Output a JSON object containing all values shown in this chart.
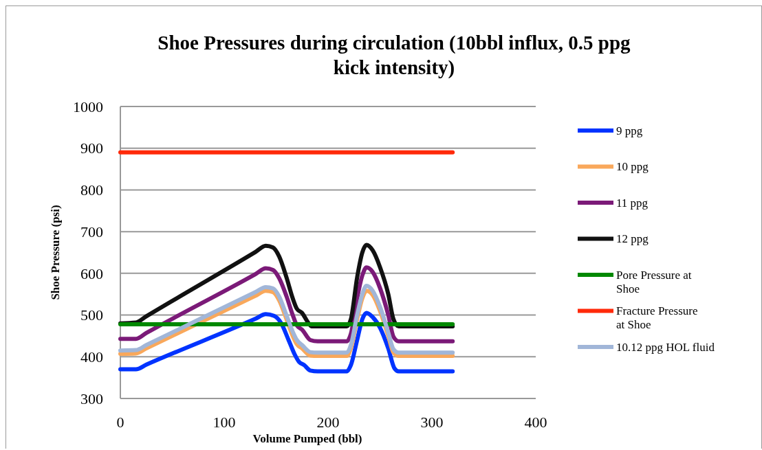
{
  "chart_data": {
    "type": "line",
    "title": "Shoe Pressures during circulation (10bbl influx, 0.5 ppg kick intensity)",
    "xlabel": "Volume Pumped (bbl)",
    "ylabel": "Shoe Pressure (psi)",
    "xlim": [
      0,
      400
    ],
    "xticks": [
      0,
      100,
      200,
      300,
      400
    ],
    "ylim": [
      300,
      1000
    ],
    "yticks": [
      300,
      400,
      500,
      600,
      700,
      800,
      900,
      1000
    ],
    "grid": "y",
    "legend": "right",
    "marker": "none",
    "line_style": "solid",
    "series": [
      {
        "name": "9 ppg",
        "color": "#0033ff",
        "x": [
          0,
          15,
          25,
          130,
          140,
          148,
          155,
          162,
          168,
          172,
          177,
          183,
          190,
          218,
          222,
          228,
          233,
          237,
          243,
          250,
          258,
          264,
          268,
          320
        ],
        "values": [
          370,
          370,
          381,
          491,
          502,
          498,
          480,
          440,
          405,
          388,
          380,
          367,
          365,
          365,
          380,
          440,
          490,
          505,
          495,
          470,
          420,
          372,
          365,
          365
        ]
      },
      {
        "name": "10 ppg",
        "color": "#f9a85b",
        "x": [
          0,
          15,
          25,
          130,
          140,
          147,
          153,
          160,
          166,
          170,
          175,
          183,
          190,
          218,
          222,
          228,
          233,
          237,
          243,
          250,
          258,
          263,
          268,
          320
        ],
        "values": [
          407,
          408,
          420,
          546,
          558,
          555,
          535,
          490,
          450,
          430,
          420,
          403,
          402,
          402,
          420,
          490,
          540,
          558,
          548,
          510,
          450,
          410,
          402,
          402
        ]
      },
      {
        "name": "11 ppg",
        "color": "#7b1a78",
        "x": [
          0,
          15,
          25,
          130,
          140,
          147,
          153,
          160,
          166,
          170,
          175,
          183,
          190,
          218,
          222,
          228,
          233,
          237,
          243,
          250,
          258,
          263,
          268,
          320
        ],
        "values": [
          443,
          443,
          457,
          598,
          612,
          608,
          588,
          545,
          500,
          475,
          465,
          440,
          437,
          437,
          455,
          540,
          595,
          614,
          603,
          565,
          500,
          448,
          437,
          437
        ]
      },
      {
        "name": "12 ppg",
        "color": "#111111",
        "x": [
          0,
          15,
          25,
          130,
          140,
          147,
          153,
          160,
          166,
          170,
          175,
          180,
          184,
          218,
          222,
          228,
          233,
          237,
          243,
          250,
          258,
          263,
          268,
          320
        ],
        "values": [
          480,
          482,
          497,
          651,
          666,
          662,
          640,
          590,
          540,
          515,
          505,
          485,
          473,
          473,
          490,
          590,
          650,
          668,
          655,
          615,
          550,
          490,
          473,
          473
        ]
      },
      {
        "name": "Pore Pressure at Shoe",
        "color": "#008800",
        "x": [
          0,
          320
        ],
        "values": [
          478,
          478
        ]
      },
      {
        "name": "Fracture Pressure at Shoe",
        "color": "#ff2a0a",
        "x": [
          0,
          320
        ],
        "values": [
          890,
          890
        ]
      },
      {
        "name": "10.12 ppg HOL fluid",
        "color": "#a1b6d8",
        "x": [
          0,
          15,
          25,
          130,
          140,
          147,
          153,
          160,
          166,
          170,
          175,
          183,
          190,
          218,
          222,
          228,
          233,
          237,
          243,
          250,
          258,
          263,
          268,
          320
        ],
        "values": [
          415,
          416,
          428,
          555,
          567,
          564,
          544,
          499,
          460,
          440,
          428,
          411,
          410,
          410,
          428,
          500,
          550,
          570,
          558,
          520,
          458,
          418,
          410,
          410
        ]
      }
    ]
  }
}
